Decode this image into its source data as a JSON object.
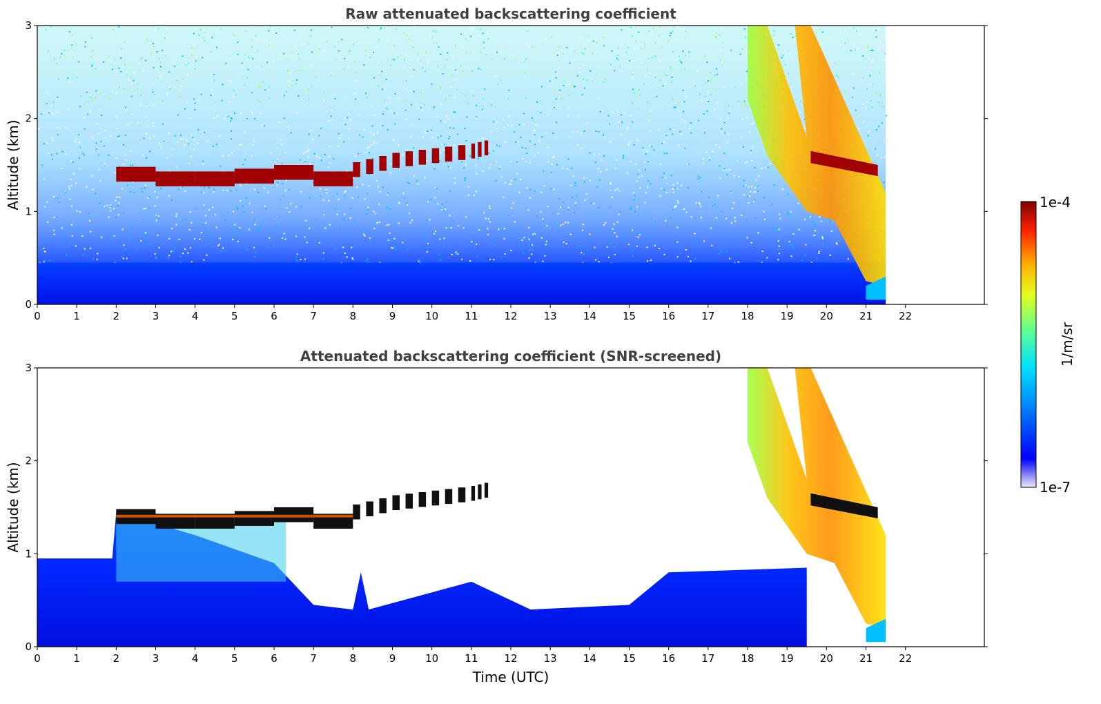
{
  "chart_data": [
    {
      "type": "heatmap",
      "title": "Raw attenuated backscattering coefficient",
      "xlabel": "",
      "ylabel": "Altitude (km)",
      "xlim": [
        0,
        24
      ],
      "ylim": [
        0,
        3
      ],
      "x_ticks": [
        0,
        1,
        2,
        3,
        4,
        5,
        6,
        7,
        8,
        9,
        10,
        11,
        12,
        13,
        14,
        15,
        16,
        17,
        18,
        19,
        20,
        21,
        22
      ],
      "y_ticks": [
        0,
        1,
        2,
        3
      ],
      "data_extent_x": [
        0,
        21.5
      ],
      "colorscale": "jet",
      "cloud_layer": {
        "description": "",
        "time": [
          2.0,
          3.0,
          4.0,
          5.0,
          6.0,
          7.0,
          8.0,
          9.0,
          10.0,
          11.0,
          11.5
        ],
        "altitude": [
          1.4,
          1.35,
          1.35,
          1.38,
          1.42,
          1.35,
          1.45,
          1.55,
          1.6,
          1.65,
          1.7
        ]
      },
      "late_clouds": {
        "time_start": 18.0,
        "time_end": 21.5,
        "altitude_top": 3.0,
        "altitude_bottom": 0.2
      }
    },
    {
      "type": "heatmap",
      "title": "Attenuated backscattering coefficient (SNR-screened)",
      "xlabel": "Time (UTC)",
      "ylabel": "Altitude (km)",
      "xlim": [
        0,
        24
      ],
      "ylim": [
        0,
        3
      ],
      "x_ticks": [
        0,
        1,
        2,
        3,
        4,
        5,
        6,
        7,
        8,
        9,
        10,
        11,
        12,
        13,
        14,
        15,
        16,
        17,
        18,
        19,
        20,
        21,
        22
      ],
      "y_ticks": [
        0,
        1,
        2,
        3
      ],
      "data_extent_x": [
        0,
        21.5
      ],
      "colorscale": "jet"
    }
  ],
  "colorbar": {
    "label": "1/m/sr",
    "max_label": "1e-4",
    "min_label": "1e-7",
    "scale": "log",
    "range": [
      1e-07,
      0.0001
    ]
  },
  "colors": {
    "title": "#404040",
    "axis": "#000000"
  }
}
